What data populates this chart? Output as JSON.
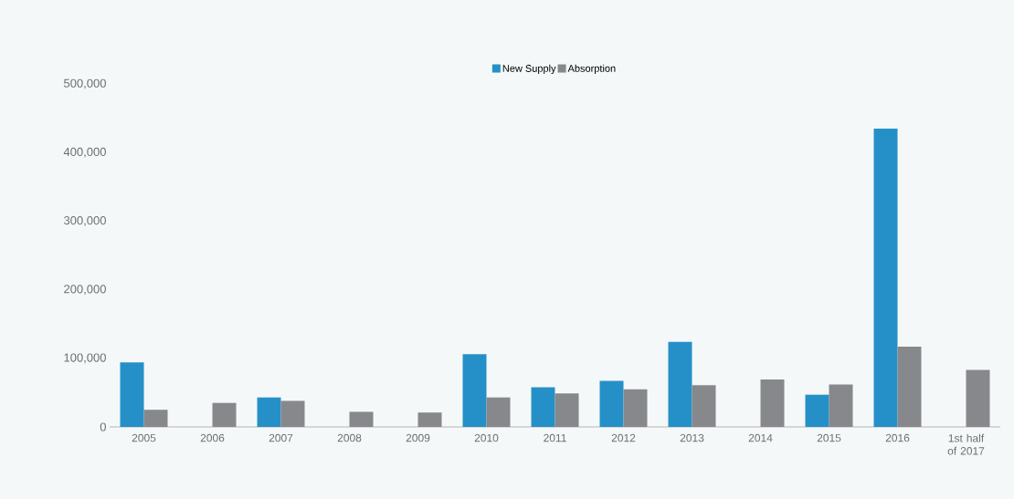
{
  "chart_data": {
    "type": "bar",
    "categories": [
      "2005",
      "2006",
      "2007",
      "2008",
      "2009",
      "2010",
      "2011",
      "2012",
      "2013",
      "2014",
      "2015",
      "2016",
      "1st half of 2017"
    ],
    "series": [
      {
        "name": "New Supply",
        "color": "#2590c8",
        "values": [
          94000,
          null,
          43000,
          null,
          null,
          106000,
          58000,
          67000,
          124000,
          null,
          47000,
          435000,
          null
        ]
      },
      {
        "name": "Absorption",
        "color": "#86888c",
        "values": [
          25000,
          35000,
          38000,
          22000,
          21000,
          43000,
          49000,
          55000,
          61000,
          69000,
          62000,
          117000,
          83000
        ]
      }
    ],
    "ylim": [
      0,
      500000
    ],
    "yticks": [
      {
        "value": 0,
        "label": "0"
      },
      {
        "value": 100000,
        "label": "100,000"
      },
      {
        "value": 200000,
        "label": "200,000"
      },
      {
        "value": 300000,
        "label": "300,000"
      },
      {
        "value": 400000,
        "label": "400,000"
      },
      {
        "value": 500000,
        "label": "500,000"
      }
    ],
    "legend": "top"
  }
}
